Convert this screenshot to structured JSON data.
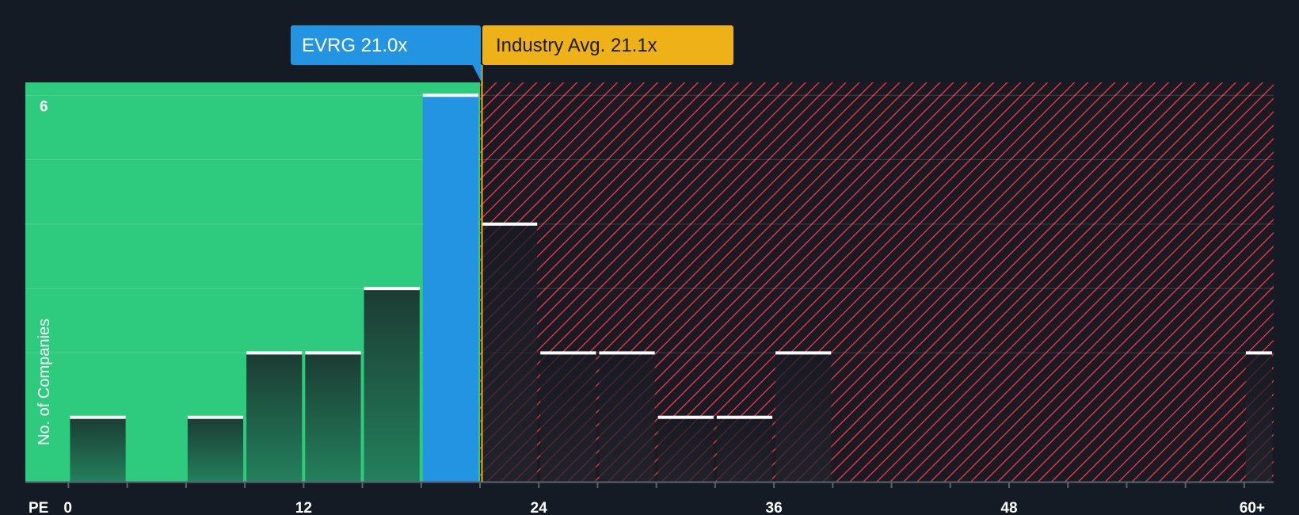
{
  "chart_data": {
    "type": "bar",
    "title": "",
    "xlabel": "PE",
    "ylabel": "No. of Companies",
    "x_ticks": [
      "0",
      "12",
      "24",
      "36",
      "48",
      "60+"
    ],
    "x_tick_values": [
      0,
      12,
      24,
      36,
      48,
      60
    ],
    "xlim": [
      -2.2,
      61.5
    ],
    "ylim": [
      0,
      6.2
    ],
    "y_tick_labels": [
      {
        "value": 6,
        "label": "6"
      }
    ],
    "gridlines": [
      2,
      3,
      4,
      5,
      6
    ],
    "bins": [
      {
        "start": 0,
        "end": 3,
        "count": 1
      },
      {
        "start": 3,
        "end": 6,
        "count": 0
      },
      {
        "start": 6,
        "end": 9,
        "count": 1
      },
      {
        "start": 9,
        "end": 12,
        "count": 2
      },
      {
        "start": 12,
        "end": 15,
        "count": 2
      },
      {
        "start": 15,
        "end": 18,
        "count": 3
      },
      {
        "start": 18,
        "end": 21,
        "count": 6,
        "highlight": true
      },
      {
        "start": 21,
        "end": 24,
        "count": 4
      },
      {
        "start": 24,
        "end": 27,
        "count": 2
      },
      {
        "start": 27,
        "end": 30,
        "count": 2
      },
      {
        "start": 30,
        "end": 33,
        "count": 1
      },
      {
        "start": 33,
        "end": 36,
        "count": 1
      },
      {
        "start": 36,
        "end": 39,
        "count": 2
      },
      {
        "start": 60,
        "end": 61.5,
        "count": 2
      }
    ],
    "company": {
      "ticker": "EVRG",
      "label": "EVRG 21.0x",
      "value": 21.0
    },
    "industry": {
      "label": "Industry Avg. 21.1x",
      "value": 21.1
    },
    "colors": {
      "background": "#151b24",
      "good_zone": "#2ecb7e",
      "bad_zone": "#d13a44",
      "company_bar": "#2394e1",
      "industry_line": "#efb118",
      "bar_dark": "#1e3f35",
      "bar_dark_bottom": "#22785a",
      "bar_cap": "#ffffff"
    }
  }
}
